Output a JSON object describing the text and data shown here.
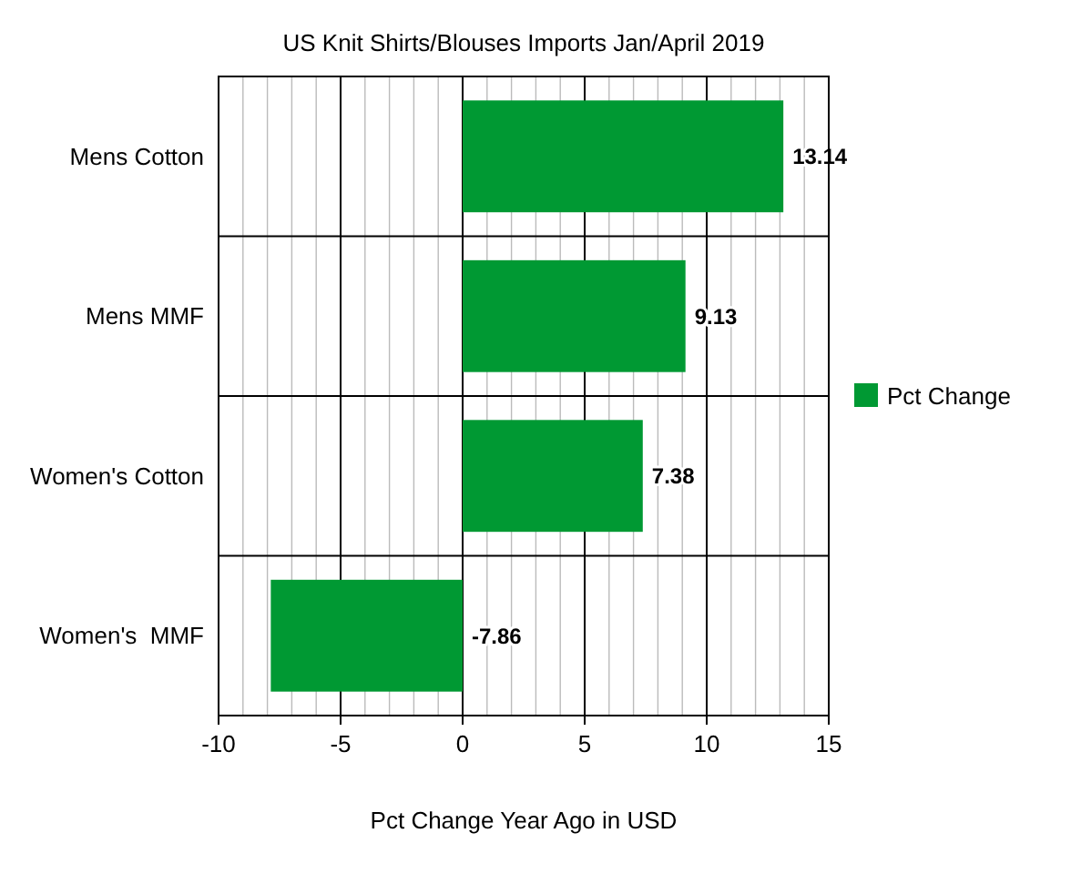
{
  "chart_data": {
    "type": "bar",
    "orientation": "horizontal",
    "title": "US Knit Shirts/Blouses Imports Jan/April 2019",
    "xlabel": "Pct Change Year Ago in USD",
    "categories": [
      "Mens Cotton",
      "Mens MMF",
      "Women's Cotton",
      "Women's  MMF"
    ],
    "series": [
      {
        "name": "Pct Change",
        "color": "#009933",
        "values": [
          13.14,
          9.13,
          7.38,
          -7.86
        ]
      }
    ],
    "xlim": [
      -10,
      15
    ],
    "xticks": [
      -10,
      {
        "value": -9,
        "label": null
      },
      {
        "value": -8,
        "label": null
      },
      {
        "value": -7,
        "label": null
      },
      {
        "value": -6,
        "label": null
      },
      -5,
      {
        "value": -4,
        "label": null
      },
      {
        "value": -3,
        "label": null
      },
      {
        "value": -2,
        "label": null
      },
      {
        "value": -1,
        "label": null
      },
      0,
      {
        "value": 1,
        "label": null
      },
      {
        "value": 2,
        "label": null
      },
      {
        "value": 3,
        "label": null
      },
      {
        "value": 4,
        "label": null
      },
      5,
      {
        "value": 6,
        "label": null
      },
      {
        "value": 7,
        "label": null
      },
      {
        "value": 8,
        "label": null
      },
      {
        "value": 9,
        "label": null
      },
      10,
      {
        "value": 11,
        "label": null
      },
      {
        "value": 12,
        "label": null
      },
      {
        "value": 13,
        "label": null
      },
      {
        "value": 14,
        "label": null
      },
      15
    ],
    "grid": true,
    "data_labels": true,
    "legend": "right"
  }
}
